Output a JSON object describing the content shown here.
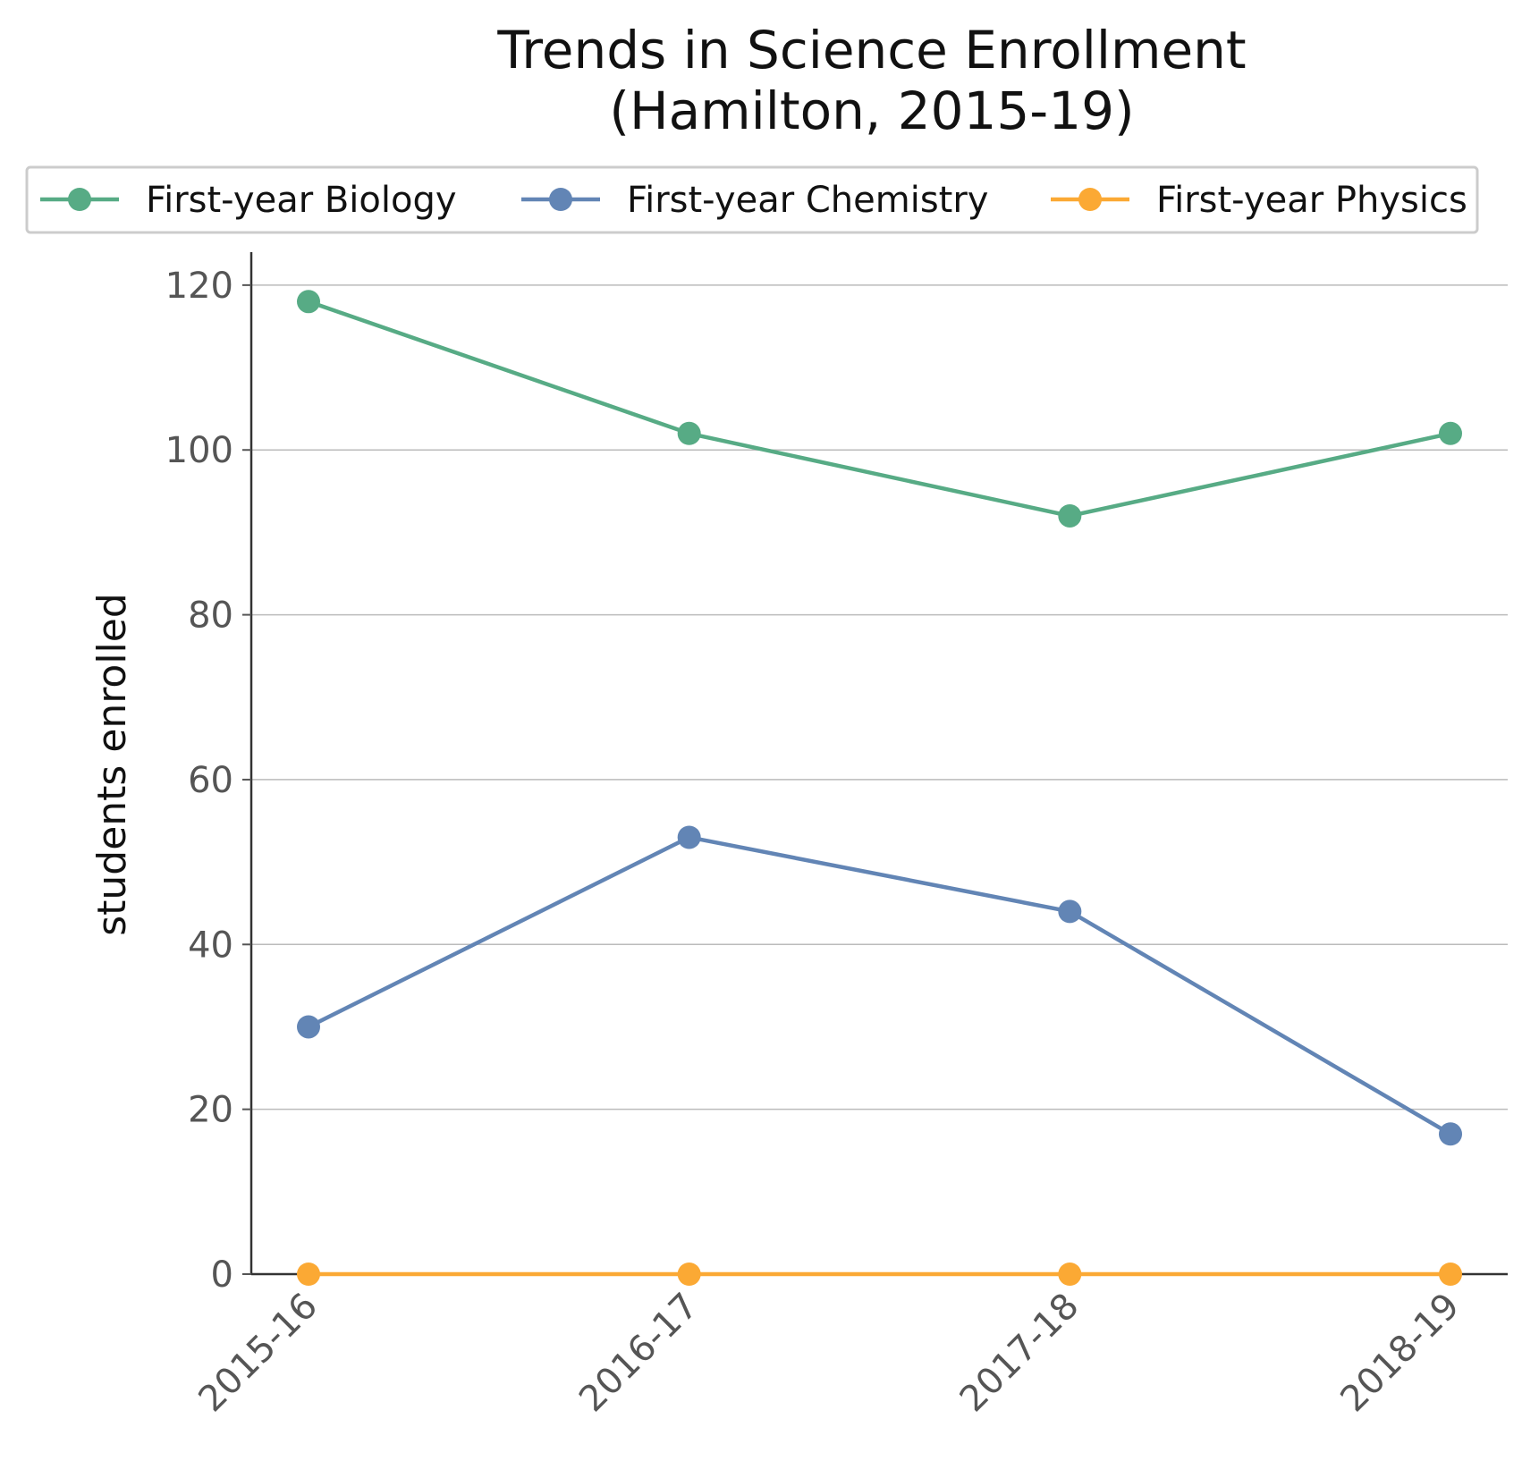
{
  "chart_data": {
    "type": "line",
    "title": "Trends in Science Enrollment",
    "subtitle": "(Hamilton, 2015-19)",
    "xlabel": "",
    "ylabel": "students enrolled",
    "categories": [
      "2015-16",
      "2016-17",
      "2017-18",
      "2018-19"
    ],
    "ylim": [
      0,
      124
    ],
    "yticks": [
      0,
      20,
      40,
      60,
      80,
      100,
      120
    ],
    "grid": true,
    "legend_position": "top",
    "series": [
      {
        "name": "First-year Biology",
        "color": "#57ab85",
        "values": [
          118,
          102,
          92,
          102
        ]
      },
      {
        "name": "First-year Chemistry",
        "color": "#6285b5",
        "values": [
          30,
          53,
          44,
          17
        ]
      },
      {
        "name": "First-year Physics",
        "color": "#fba934",
        "values": [
          0,
          0,
          0,
          0
        ]
      }
    ]
  }
}
